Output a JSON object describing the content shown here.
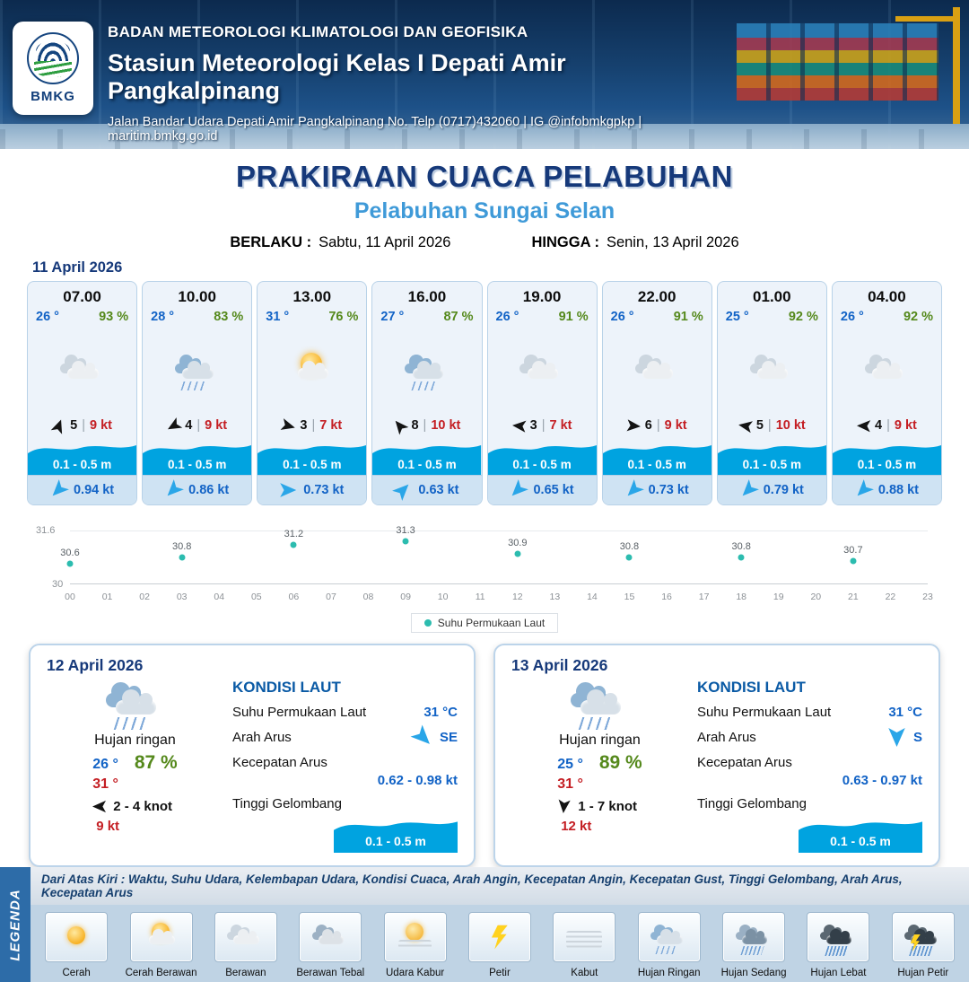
{
  "header": {
    "org": "BADAN METEOROLOGI KLIMATOLOGI DAN GEOFISIKA",
    "station": "Stasiun Meteorologi Kelas I Depati Amir Pangkalpinang",
    "address": "Jalan Bandar Udara Depati Amir Pangkalpinang No. Telp (0717)432060 | IG @infobmkgpkp | maritim.bmkg.go.id",
    "logo": "BMKG"
  },
  "title": {
    "main": "PRAKIRAAN CUACA PELABUHAN",
    "subtitle": "Pelabuhan Sungai Selan",
    "valid_label": "BERLAKU :",
    "valid_value": "Sabtu, 11 April 2026",
    "until_label": "HINGGA :",
    "until_value": "Senin, 13 April 2026"
  },
  "forecast_date": "11 April 2026",
  "ui": {
    "wind_sep": "|"
  },
  "hourly": [
    {
      "time": "07.00",
      "temp": "26 °",
      "humidity": "93 %",
      "icon": "berawan",
      "wind_deg": -70,
      "wind_speed": "5",
      "wind_gust": "9 kt",
      "wave": "0.1 - 0.5 m",
      "current_deg": 135,
      "current_speed": "0.94 kt"
    },
    {
      "time": "10.00",
      "temp": "28 °",
      "humidity": "83 %",
      "icon": "hujan-ringan",
      "wind_deg": 150,
      "wind_speed": "4",
      "wind_gust": "9 kt",
      "wave": "0.1 - 0.5 m",
      "current_deg": 135,
      "current_speed": "0.86 kt"
    },
    {
      "time": "13.00",
      "temp": "31 °",
      "humidity": "76 %",
      "icon": "cerah-berawan",
      "wind_deg": 15,
      "wind_speed": "3",
      "wind_gust": "7 kt",
      "wave": "0.1 - 0.5 m",
      "current_deg": 0,
      "current_speed": "0.73 kt"
    },
    {
      "time": "16.00",
      "temp": "27 °",
      "humidity": "87 %",
      "icon": "hujan-ringan",
      "wind_deg": -130,
      "wind_speed": "8",
      "wind_gust": "10 kt",
      "wave": "0.1 - 0.5 m",
      "current_deg": -45,
      "current_speed": "0.63 kt"
    },
    {
      "time": "19.00",
      "temp": "26 °",
      "humidity": "91 %",
      "icon": "berawan",
      "wind_deg": 185,
      "wind_speed": "3",
      "wind_gust": "7 kt",
      "wave": "0.1 - 0.5 m",
      "current_deg": 135,
      "current_speed": "0.65 kt"
    },
    {
      "time": "22.00",
      "temp": "26 °",
      "humidity": "91 %",
      "icon": "berawan",
      "wind_deg": 5,
      "wind_speed": "6",
      "wind_gust": "9 kt",
      "wave": "0.1 - 0.5 m",
      "current_deg": 135,
      "current_speed": "0.73 kt"
    },
    {
      "time": "01.00",
      "temp": "25 °",
      "humidity": "92 %",
      "icon": "berawan",
      "wind_deg": -170,
      "wind_speed": "5",
      "wind_gust": "10 kt",
      "wave": "0.1 - 0.5 m",
      "current_deg": 135,
      "current_speed": "0.79 kt"
    },
    {
      "time": "04.00",
      "temp": "26 °",
      "humidity": "92 %",
      "icon": "berawan",
      "wind_deg": 182,
      "wind_speed": "4",
      "wind_gust": "9 kt",
      "wave": "0.1 - 0.5 m",
      "current_deg": 135,
      "current_speed": "0.88 kt"
    }
  ],
  "chart_data": {
    "type": "scatter",
    "title": "Suhu Permukaan Laut",
    "legend": "Suhu Permukaan Laut",
    "ylim": [
      30,
      31.6
    ],
    "y_tick_labels": [
      "31.6",
      "30"
    ],
    "x_ticks": [
      "00",
      "01",
      "02",
      "03",
      "04",
      "05",
      "06",
      "07",
      "08",
      "09",
      "10",
      "11",
      "12",
      "13",
      "14",
      "15",
      "16",
      "17",
      "18",
      "19",
      "20",
      "21",
      "22",
      "23"
    ],
    "series": [
      {
        "name": "Suhu Permukaan Laut",
        "x": [
          0,
          3,
          6,
          9,
          12,
          15,
          18,
          21
        ],
        "values": [
          30.6,
          30.8,
          31.2,
          31.3,
          30.9,
          30.8,
          30.8,
          30.7
        ]
      }
    ],
    "dot_color": "#2cbcaf",
    "grid": "minimal",
    "legend_position": "bottom-center"
  },
  "days": [
    {
      "date": "12 April 2026",
      "icon": "hujan-ringan",
      "condition": "Hujan ringan",
      "temp_min": "26 °",
      "humidity": "87 %",
      "temp_max": "31 °",
      "wind_deg": 180,
      "wind": "2 - 4 knot",
      "gust": "9 kt",
      "sea": {
        "heading": "KONDISI LAUT",
        "sst_label": "Suhu Permukaan Laut",
        "sst": "31 °C",
        "dir_label": "Arah Arus",
        "dir": "SE",
        "dir_deg": 45,
        "speed_label": "Kecepatan Arus",
        "speed": "0.62  - 0.98 kt",
        "wave_label": "Tinggi Gelombang",
        "wave": "0.1 - 0.5 m"
      }
    },
    {
      "date": "13 April 2026",
      "icon": "hujan-ringan",
      "condition": "Hujan ringan",
      "temp_min": "25 °",
      "humidity": "89 %",
      "temp_max": "31 °",
      "wind_deg": 95,
      "wind": "1  - 7 knot",
      "gust": "12 kt",
      "sea": {
        "heading": "KONDISI LAUT",
        "sst_label": "Suhu Permukaan Laut",
        "sst": "31 °C",
        "dir_label": "Arah Arus",
        "dir": "S",
        "dir_deg": 90,
        "speed_label": "Kecepatan Arus",
        "speed": "0.63  - 0.97 kt",
        "wave_label": "Tinggi Gelombang",
        "wave": "0.1 - 0.5 m"
      }
    }
  ],
  "legend": {
    "title": "LEGENDA",
    "note": "Dari Atas Kiri : Waktu, Suhu Udara, Kelembapan Udara, Kondisi Cuaca, Arah Angin, Kecepatan Angin, Kecepatan Gust, Tinggi Gelombang, Arah Arus, Kecepatan Arus",
    "items": [
      {
        "label": "Cerah",
        "icon": "cerah"
      },
      {
        "label": "Cerah Berawan",
        "icon": "cerah-berawan"
      },
      {
        "label": "Berawan",
        "icon": "berawan"
      },
      {
        "label": "Berawan Tebal",
        "icon": "berawan-tebal"
      },
      {
        "label": "Udara Kabur",
        "icon": "udara-kabur"
      },
      {
        "label": "Petir",
        "icon": "petir"
      },
      {
        "label": "Kabut",
        "icon": "kabut"
      },
      {
        "label": "Hujan Ringan",
        "icon": "hujan-ringan"
      },
      {
        "label": "Hujan Sedang",
        "icon": "hujan-sedang"
      },
      {
        "label": "Hujan Lebat",
        "icon": "hujan-lebat"
      },
      {
        "label": "Hujan Petir",
        "icon": "hujan-petir"
      }
    ]
  }
}
